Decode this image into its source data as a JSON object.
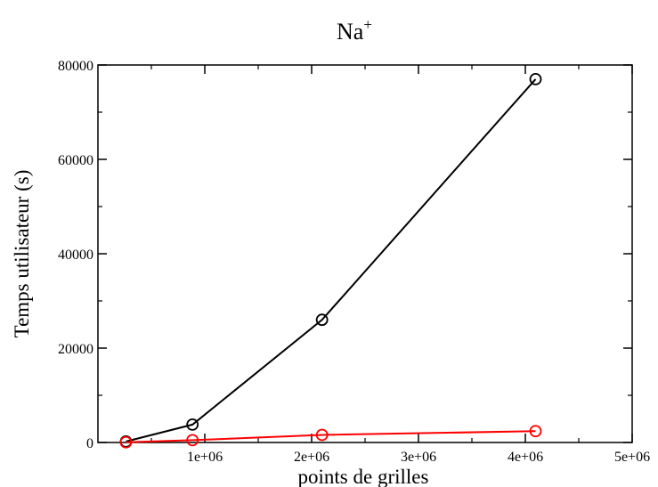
{
  "chart_data": {
    "type": "line",
    "title_main": "Na",
    "title_sup": "+",
    "xlabel": "points de grilles",
    "ylabel": "Temps utilisateur (s)",
    "xlim": [
      0,
      5000000
    ],
    "ylim": [
      0,
      80000
    ],
    "x_ticks": [
      1000000,
      2000000,
      3000000,
      4000000,
      5000000
    ],
    "x_tick_labels": [
      "1e+06",
      "2e+06",
      "3e+06",
      "4e+06",
      "5e+06"
    ],
    "y_ticks": [
      0,
      20000,
      40000,
      60000,
      80000
    ],
    "y_tick_labels": [
      "0",
      "20000",
      "40000",
      "60000",
      "80000"
    ],
    "grid": false,
    "legend": "none",
    "series": [
      {
        "color": "#000000",
        "marker": "circle",
        "x": [
          262144,
          884736,
          2097152,
          4096000
        ],
        "y": [
          200,
          3800,
          26000,
          77000
        ]
      },
      {
        "color": "#ff0000",
        "marker": "circle",
        "x": [
          262144,
          884736,
          2097152,
          4096000
        ],
        "y": [
          50,
          500,
          1600,
          2400
        ]
      }
    ]
  }
}
